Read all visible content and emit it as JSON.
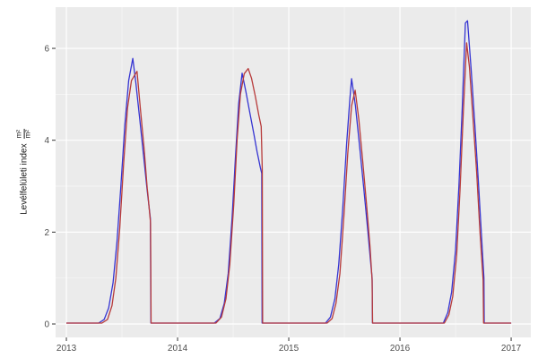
{
  "chart_data": {
    "type": "line",
    "title": "",
    "xlabel": "",
    "ylabel": {
      "text": "Levélfelületi index",
      "frac_num": "m²",
      "frac_den": "m²"
    },
    "legend": "none",
    "grid": true,
    "panel_bg": "#EBEBEB",
    "grid_major_color": "#FFFFFF",
    "grid_minor_color": "#F7F7F7",
    "tick_color": "#333333",
    "tick_label_color": "#4D4D4D",
    "x_ticks": [
      "2013",
      "2014",
      "2015",
      "2016",
      "2017"
    ],
    "x_tick_years": [
      2013,
      2014,
      2015,
      2016,
      2017
    ],
    "x_minor": [
      2013.5,
      2014.5,
      2015.5,
      2016.5
    ],
    "y_ticks": [
      "0",
      "2",
      "4",
      "6"
    ],
    "y_tick_values": [
      0,
      2,
      4,
      6
    ],
    "y_minor": [
      1,
      3,
      5
    ],
    "xlim": [
      2012.903,
      2017.177
    ],
    "ylim": [
      -0.292,
      6.897
    ],
    "series": [
      {
        "name": "series-blue",
        "color": "#3534D2",
        "points": [
          [
            2013.0,
            0.02
          ],
          [
            2013.29,
            0.02
          ],
          [
            2013.34,
            0.1
          ],
          [
            2013.38,
            0.35
          ],
          [
            2013.42,
            0.9
          ],
          [
            2013.455,
            1.8
          ],
          [
            2013.49,
            3.0
          ],
          [
            2013.525,
            4.3
          ],
          [
            2013.56,
            5.3
          ],
          [
            2013.597,
            5.78
          ],
          [
            2013.625,
            5.25
          ],
          [
            2013.66,
            4.45
          ],
          [
            2013.695,
            3.65
          ],
          [
            2013.725,
            2.95
          ],
          [
            2013.755,
            2.3
          ],
          [
            2013.76,
            0.02
          ],
          [
            2014.33,
            0.02
          ],
          [
            2014.38,
            0.12
          ],
          [
            2014.42,
            0.45
          ],
          [
            2014.455,
            1.1
          ],
          [
            2014.49,
            2.3
          ],
          [
            2014.52,
            3.6
          ],
          [
            2014.55,
            4.8
          ],
          [
            2014.58,
            5.46
          ],
          [
            2014.615,
            5.05
          ],
          [
            2014.65,
            4.6
          ],
          [
            2014.685,
            4.15
          ],
          [
            2014.715,
            3.75
          ],
          [
            2014.745,
            3.4
          ],
          [
            2014.757,
            3.28
          ],
          [
            2014.76,
            0.02
          ],
          [
            2015.33,
            0.02
          ],
          [
            2015.375,
            0.15
          ],
          [
            2015.415,
            0.55
          ],
          [
            2015.45,
            1.3
          ],
          [
            2015.485,
            2.5
          ],
          [
            2015.52,
            3.9
          ],
          [
            2015.55,
            4.9
          ],
          [
            2015.565,
            5.34
          ],
          [
            2015.6,
            4.75
          ],
          [
            2015.64,
            3.8
          ],
          [
            2015.675,
            2.95
          ],
          [
            2015.71,
            2.05
          ],
          [
            2015.74,
            1.25
          ],
          [
            2015.75,
            1.0
          ],
          [
            2015.753,
            0.02
          ],
          [
            2016.39,
            0.02
          ],
          [
            2016.43,
            0.25
          ],
          [
            2016.465,
            0.7
          ],
          [
            2016.5,
            1.6
          ],
          [
            2016.53,
            3.0
          ],
          [
            2016.56,
            4.7
          ],
          [
            2016.588,
            6.55
          ],
          [
            2016.608,
            6.6
          ],
          [
            2016.64,
            5.55
          ],
          [
            2016.675,
            4.3
          ],
          [
            2016.705,
            3.1
          ],
          [
            2016.735,
            1.85
          ],
          [
            2016.755,
            1.0
          ],
          [
            2016.758,
            0.02
          ],
          [
            2017.0,
            0.02
          ]
        ]
      },
      {
        "name": "series-red",
        "color": "#B73A3A",
        "points": [
          [
            2013.0,
            0.02
          ],
          [
            2013.32,
            0.02
          ],
          [
            2013.37,
            0.1
          ],
          [
            2013.41,
            0.4
          ],
          [
            2013.445,
            1.0
          ],
          [
            2013.48,
            2.1
          ],
          [
            2013.515,
            3.5
          ],
          [
            2013.55,
            4.7
          ],
          [
            2013.585,
            5.3
          ],
          [
            2013.635,
            5.5
          ],
          [
            2013.665,
            4.7
          ],
          [
            2013.7,
            3.8
          ],
          [
            2013.727,
            2.95
          ],
          [
            2013.733,
            2.83
          ],
          [
            2013.757,
            2.2
          ],
          [
            2013.762,
            0.02
          ],
          [
            2014.345,
            0.02
          ],
          [
            2014.395,
            0.15
          ],
          [
            2014.435,
            0.55
          ],
          [
            2014.47,
            1.3
          ],
          [
            2014.505,
            2.6
          ],
          [
            2014.535,
            4.0
          ],
          [
            2014.565,
            5.0
          ],
          [
            2014.6,
            5.45
          ],
          [
            2014.635,
            5.56
          ],
          [
            2014.665,
            5.35
          ],
          [
            2014.7,
            4.95
          ],
          [
            2014.73,
            4.55
          ],
          [
            2014.752,
            4.3
          ],
          [
            2014.762,
            3.35
          ],
          [
            2014.765,
            0.02
          ],
          [
            2015.345,
            0.02
          ],
          [
            2015.39,
            0.12
          ],
          [
            2015.425,
            0.45
          ],
          [
            2015.46,
            1.1
          ],
          [
            2015.495,
            2.3
          ],
          [
            2015.53,
            3.7
          ],
          [
            2015.565,
            4.75
          ],
          [
            2015.597,
            5.09
          ],
          [
            2015.63,
            4.45
          ],
          [
            2015.665,
            3.55
          ],
          [
            2015.7,
            2.6
          ],
          [
            2015.73,
            1.7
          ],
          [
            2015.75,
            0.95
          ],
          [
            2015.754,
            0.02
          ],
          [
            2016.4,
            0.02
          ],
          [
            2016.44,
            0.2
          ],
          [
            2016.475,
            0.6
          ],
          [
            2016.51,
            1.5
          ],
          [
            2016.54,
            2.9
          ],
          [
            2016.57,
            4.6
          ],
          [
            2016.6,
            6.12
          ],
          [
            2016.625,
            5.6
          ],
          [
            2016.658,
            4.45
          ],
          [
            2016.69,
            3.3
          ],
          [
            2016.72,
            2.0
          ],
          [
            2016.748,
            0.95
          ],
          [
            2016.752,
            0.02
          ],
          [
            2017.0,
            0.02
          ]
        ]
      }
    ]
  }
}
